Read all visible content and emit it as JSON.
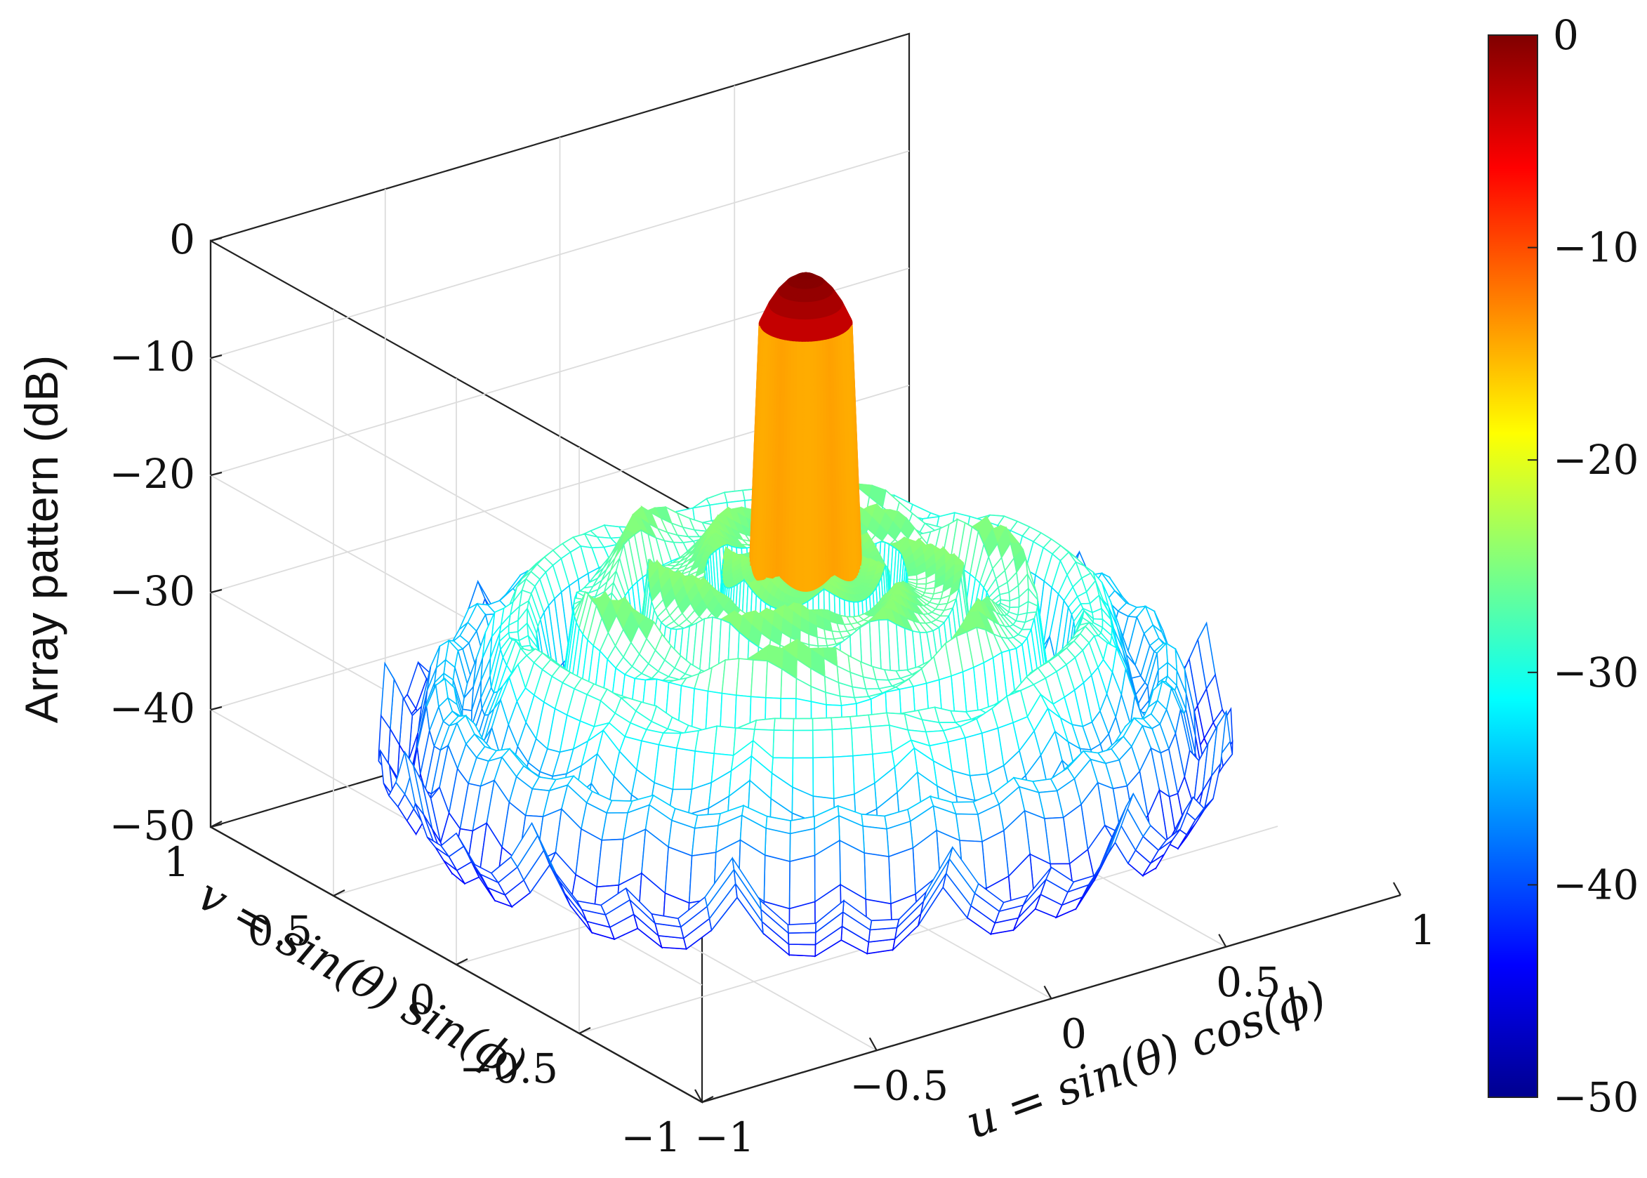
{
  "chart_data": {
    "type": "surface",
    "title": "",
    "xlabel": "u = sin(θ) cos(ϕ)",
    "ylabel": "v = sin(θ) sin(ϕ)",
    "zlabel": "Array pattern (dB)",
    "xlim": [
      -1,
      1
    ],
    "ylim": [
      -1,
      1
    ],
    "zlim": [
      -50,
      0
    ],
    "x_ticks": [
      "−1",
      "−0.5",
      "0",
      "0.5",
      "1"
    ],
    "y_ticks": [
      "−1",
      "−0.5",
      "0",
      "0.5",
      "1"
    ],
    "z_ticks": [
      "−50",
      "−40",
      "−30",
      "−20",
      "−10",
      "0"
    ],
    "grid": true,
    "colormap": "jet",
    "colorbar": {
      "range": [
        -50,
        0
      ],
      "ticks": [
        "0",
        "−10",
        "−20",
        "−30",
        "−40",
        "−50"
      ]
    },
    "peak": {
      "u": 0,
      "v": 0,
      "value": 0
    },
    "floor": -50,
    "colors": {
      "min": "#00008f",
      "blue": "#0000ff",
      "cyan": "#00ffff",
      "yellow": "#ffff00",
      "red": "#ff0000",
      "max": "#800000"
    }
  }
}
